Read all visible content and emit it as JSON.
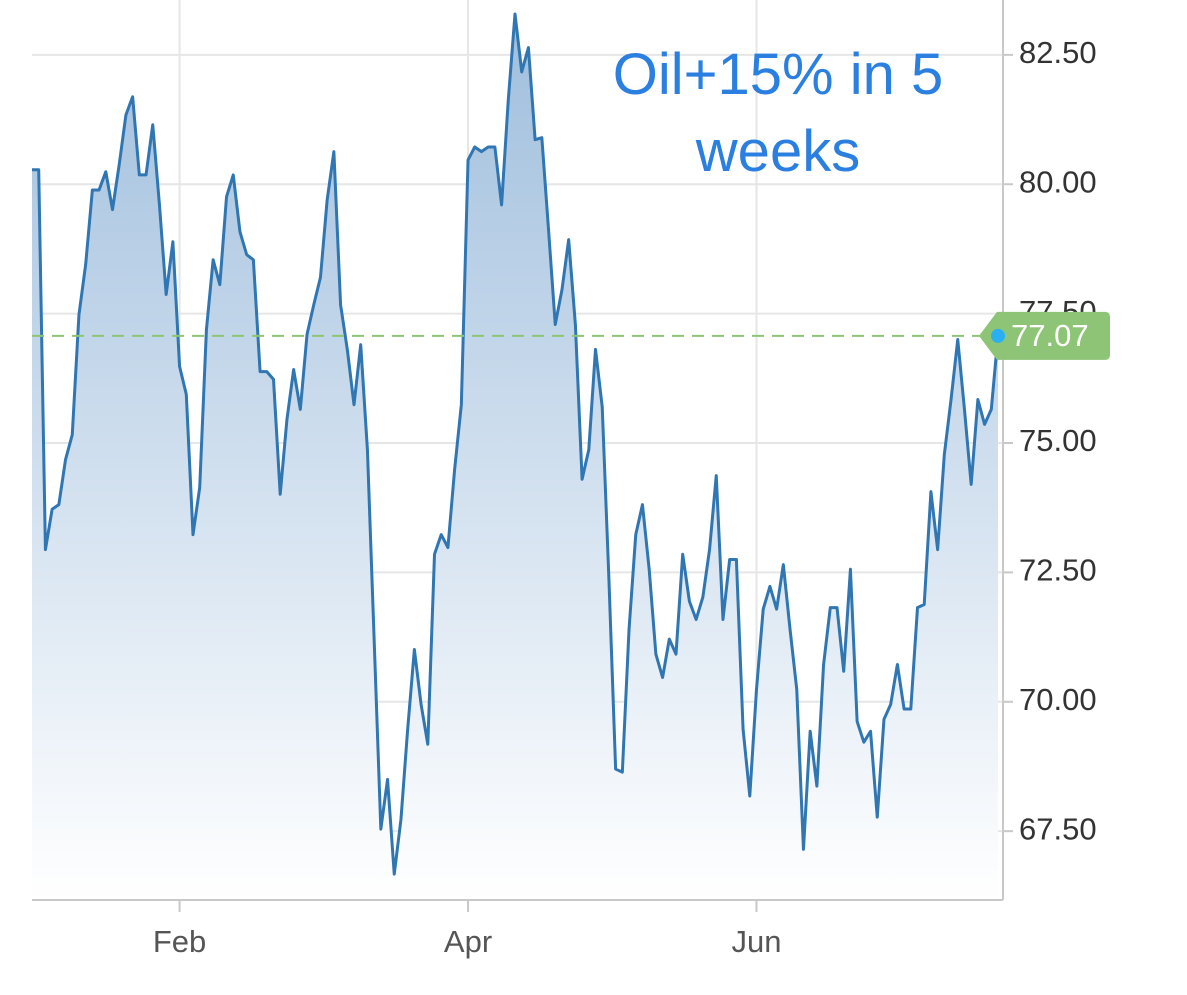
{
  "chart_data": {
    "type": "area",
    "annotation": "Oil+15% in 5 weeks",
    "categories": [
      null,
      null,
      null,
      null,
      null,
      null,
      null,
      null,
      null,
      null,
      null,
      null,
      null,
      null,
      null,
      null,
      null,
      null,
      null,
      null,
      null,
      null,
      "Feb",
      null,
      null,
      null,
      null,
      null,
      null,
      null,
      null,
      null,
      null,
      null,
      null,
      null,
      null,
      null,
      null,
      null,
      null,
      null,
      null,
      null,
      null,
      null,
      null,
      null,
      null,
      null,
      null,
      null,
      null,
      null,
      null,
      null,
      null,
      null,
      null,
      null,
      null,
      null,
      null,
      null,
      null,
      "Apr",
      null,
      null,
      null,
      null,
      null,
      null,
      null,
      null,
      null,
      null,
      null,
      null,
      null,
      null,
      null,
      null,
      null,
      null,
      null,
      null,
      null,
      null,
      null,
      null,
      null,
      null,
      null,
      null,
      null,
      null,
      null,
      null,
      null,
      null,
      null,
      null,
      null,
      null,
      null,
      null,
      null,
      null,
      "Jun",
      null,
      null,
      null,
      null,
      null,
      null,
      null,
      null,
      null,
      null,
      null,
      null,
      null,
      null,
      null,
      null,
      null,
      null,
      null,
      null,
      null,
      null,
      null,
      null,
      null,
      null,
      null,
      null,
      null,
      null,
      null,
      null,
      null,
      null,
      null,
      null
    ],
    "values": [
      80.28,
      80.28,
      72.94,
      73.72,
      73.81,
      74.68,
      75.16,
      77.48,
      78.45,
      79.89,
      79.89,
      80.24,
      79.51,
      80.38,
      81.34,
      81.69,
      80.18,
      80.18,
      81.15,
      79.6,
      77.87,
      78.89,
      76.48,
      75.94,
      73.23,
      74.14,
      77.19,
      78.54,
      78.06,
      79.76,
      80.18,
      79.08,
      78.64,
      78.54,
      76.38,
      76.38,
      76.23,
      74.01,
      75.45,
      76.42,
      75.65,
      77.1,
      77.67,
      78.2,
      79.7,
      80.63,
      77.67,
      76.81,
      75.74,
      76.9,
      74.87,
      71.21,
      67.54,
      68.5,
      66.67,
      67.73,
      69.47,
      71.01,
      69.95,
      69.18,
      72.85,
      73.23,
      72.98,
      74.49,
      75.74,
      80.47,
      80.72,
      80.63,
      80.72,
      80.72,
      79.6,
      81.63,
      83.29,
      82.17,
      82.64,
      80.86,
      80.9,
      79.12,
      77.29,
      77.96,
      78.93,
      77.29,
      74.3,
      74.87,
      76.81,
      75.7,
      72.37,
      68.7,
      68.64,
      71.4,
      73.23,
      73.81,
      72.56,
      70.92,
      70.47,
      71.21,
      70.92,
      72.85,
      71.94,
      71.59,
      72.02,
      72.94,
      74.37,
      71.59,
      72.75,
      72.75,
      69.47,
      68.18,
      70.24,
      71.79,
      72.23,
      71.79,
      72.65,
      71.4,
      70.24,
      67.15,
      69.43,
      68.37,
      70.72,
      71.82,
      71.82,
      70.59,
      72.56,
      69.62,
      69.22,
      69.43,
      67.77,
      69.66,
      69.95,
      70.72,
      69.86,
      69.86,
      71.82,
      71.88,
      74.06,
      72.94,
      74.78,
      75.84,
      77.0,
      75.65,
      74.2,
      75.84,
      75.36,
      75.65,
      77.07
    ],
    "color": "#2f76b3",
    "last_value_color": "#8dc475",
    "ylim": [
      66.17,
      83.56
    ],
    "yticks": [
      {
        "value": 67.5,
        "label": "67.50"
      },
      {
        "value": 70,
        "label": "70.00"
      },
      {
        "value": 72.5,
        "label": "72.50"
      },
      {
        "value": 75,
        "label": "75.00"
      },
      {
        "value": 77.5,
        "label": "77.50"
      },
      {
        "value": 80,
        "label": "80.00"
      },
      {
        "value": 82.5,
        "label": "82.50"
      }
    ],
    "grid": true
  }
}
